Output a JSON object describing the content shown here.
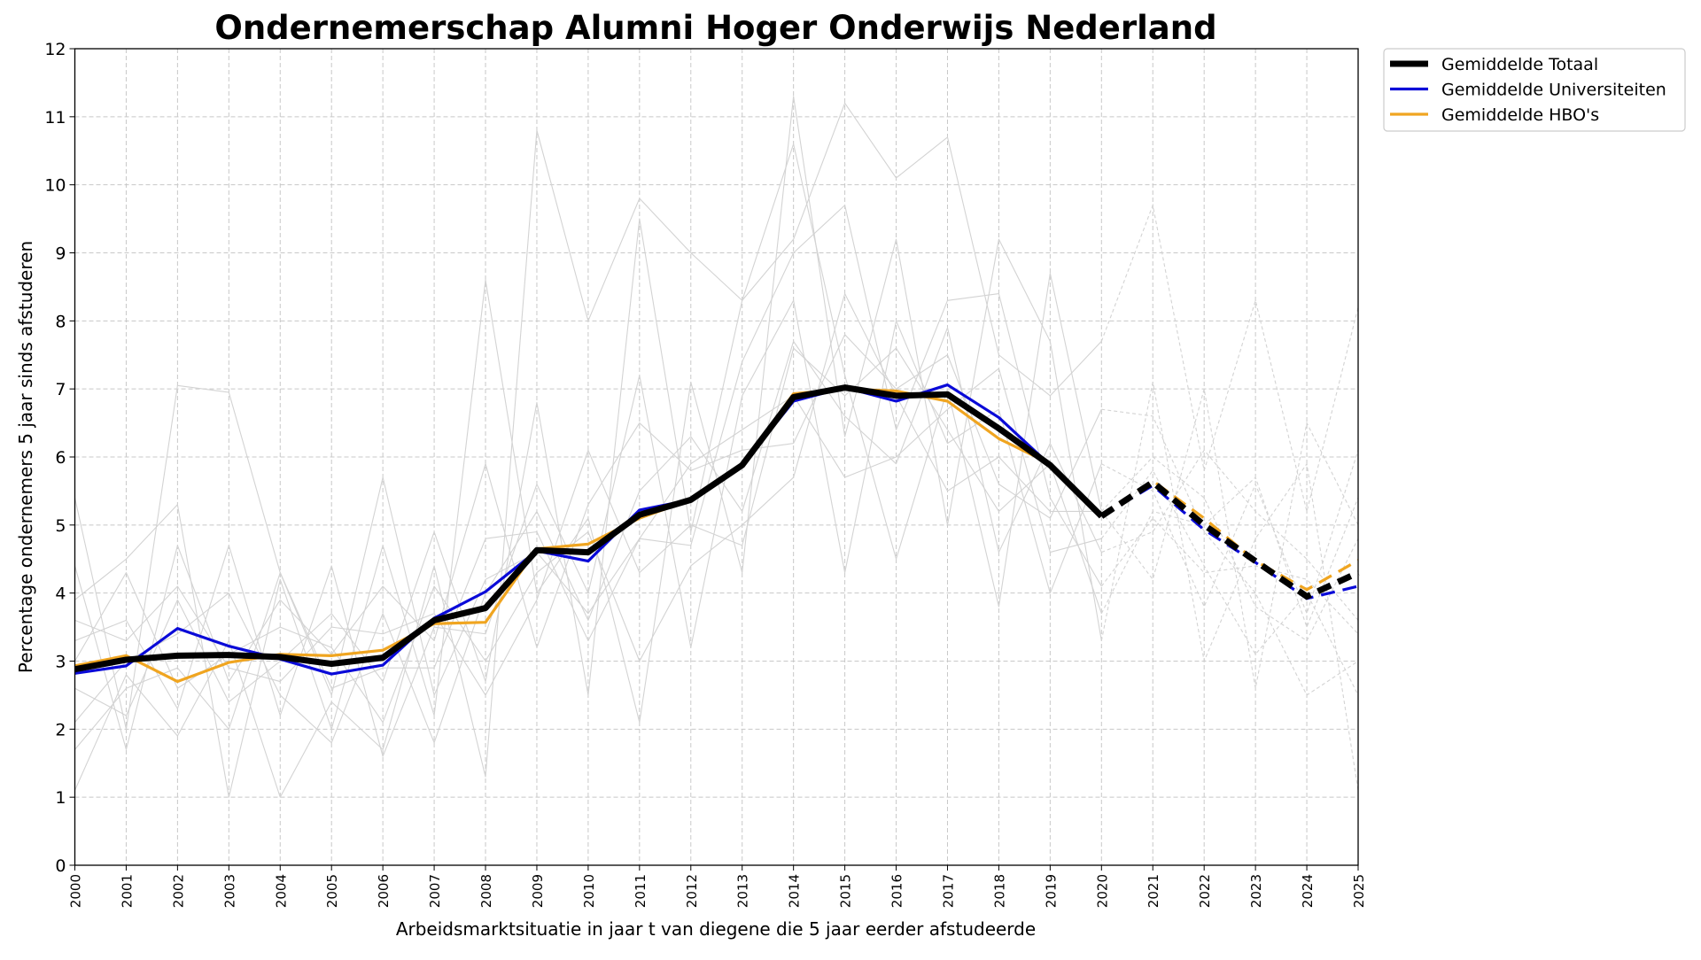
{
  "chart_data": {
    "type": "line",
    "title": "Ondernemerschap Alumni Hoger Onderwijs Nederland",
    "xlabel": "Arbeidsmarktsituatie in jaar t van diegene die 5 jaar eerder afstudeerde",
    "ylabel": "Percentage ondernemers 5 jaar sinds afstuderen",
    "x": [
      2000,
      2001,
      2002,
      2003,
      2004,
      2005,
      2006,
      2007,
      2008,
      2009,
      2010,
      2011,
      2012,
      2013,
      2014,
      2015,
      2016,
      2017,
      2018,
      2019,
      2020,
      2021,
      2022,
      2023,
      2024,
      2025
    ],
    "xlim": [
      2000,
      2025
    ],
    "ylim": [
      0,
      12
    ],
    "yticks": [
      0,
      1,
      2,
      3,
      4,
      5,
      6,
      7,
      8,
      9,
      10,
      11,
      12
    ],
    "grid": true,
    "dashed_from_x": 2020,
    "legend_position": "outside-top-right",
    "series": [
      {
        "name": "Gemiddelde Totaal",
        "color": "#000000",
        "values": [
          2.88,
          3.02,
          3.08,
          3.09,
          3.06,
          2.96,
          3.05,
          3.6,
          3.78,
          4.63,
          4.6,
          5.15,
          5.37,
          5.88,
          6.88,
          7.02,
          6.9,
          6.92,
          6.42,
          5.88,
          5.13,
          5.63,
          5.0,
          4.47,
          3.95,
          4.3
        ]
      },
      {
        "name": "Gemiddelde Universiteiten",
        "color": "#0a0ad8",
        "values": [
          2.82,
          2.93,
          3.48,
          3.22,
          3.03,
          2.81,
          2.94,
          3.63,
          4.02,
          4.62,
          4.47,
          5.22,
          5.37,
          5.88,
          6.82,
          7.02,
          6.82,
          7.06,
          6.58,
          5.88,
          5.13,
          5.58,
          4.93,
          4.45,
          3.92,
          4.1
        ]
      },
      {
        "name": "Gemiddelde HBO's",
        "color": "#f0a520",
        "values": [
          2.93,
          3.08,
          2.7,
          2.98,
          3.1,
          3.08,
          3.16,
          3.55,
          3.57,
          4.65,
          4.72,
          5.1,
          5.37,
          5.88,
          6.93,
          7.0,
          6.97,
          6.82,
          6.27,
          5.9,
          5.13,
          5.65,
          5.1,
          4.47,
          4.05,
          4.48
        ]
      }
    ],
    "background_series_color": "#d3d3d3",
    "background_series": [
      [
        5.4,
        2.0,
        7.05,
        6.95,
        4.3,
        2.5,
        5.7,
        2.5,
        4.2,
        4.6,
        3.7,
        4.8,
        4.7,
        7.4,
        9.0,
        9.7,
        6.4,
        8.3,
        8.4,
        5.4,
        4.1,
        5.1,
        4.3,
        4.4,
        4.2,
        3.4
      ],
      [
        1.1,
        2.8,
        1.9,
        3.3,
        1.0,
        2.4,
        1.7,
        4.4,
        1.3,
        10.8,
        8.0,
        9.8,
        9.0,
        8.3,
        9.2,
        11.2,
        10.1,
        10.7,
        7.5,
        6.9,
        7.7,
        9.7,
        5.8,
        8.3,
        5.2,
        8.2
      ],
      [
        3.9,
        4.5,
        5.3,
        1.0,
        4.2,
        2.0,
        4.7,
        2.2,
        8.6,
        4.0,
        5.1,
        2.1,
        7.1,
        4.3,
        11.3,
        6.3,
        9.2,
        5.0,
        9.2,
        7.7,
        3.3,
        7.1,
        3.0,
        4.8,
        5.9,
        1.1
      ],
      [
        2.6,
        2.2,
        3.9,
        2.4,
        3.0,
        3.7,
        2.7,
        4.9,
        2.7,
        6.8,
        2.5,
        9.5,
        4.9,
        8.3,
        10.6,
        7.2,
        4.5,
        7.0,
        3.8,
        8.7,
        5.2,
        4.2,
        7.0,
        2.6,
        6.5,
        5.0
      ],
      [
        3.3,
        3.6,
        2.3,
        4.7,
        2.2,
        4.4,
        1.6,
        3.5,
        3.4,
        5.6,
        4.0,
        7.2,
        3.2,
        6.9,
        8.3,
        4.3,
        8.0,
        6.2,
        6.7,
        4.0,
        5.9,
        5.5,
        3.8,
        5.6,
        3.7,
        6.1
      ],
      [
        4.4,
        1.7,
        4.7,
        2.7,
        3.9,
        3.1,
        4.1,
        3.3,
        5.9,
        3.2,
        5.3,
        6.5,
        5.8,
        6.1,
        6.2,
        7.8,
        7.0,
        7.5,
        5.6,
        5.1,
        6.7,
        6.6,
        4.9,
        4.0,
        2.5,
        3.0
      ],
      [
        2.1,
        3.0,
        3.4,
        4.0,
        2.5,
        1.8,
        3.7,
        1.8,
        4.0,
        5.2,
        3.6,
        5.5,
        6.3,
        5.2,
        7.7,
        6.6,
        5.9,
        7.9,
        4.6,
        6.2,
        4.6,
        4.9,
        6.1,
        5.2,
        4.5,
        3.6
      ],
      [
        3.0,
        4.3,
        2.6,
        3.1,
        3.5,
        3.2,
        2.1,
        4.1,
        3.0,
        4.3,
        4.9,
        3.0,
        4.4,
        5.0,
        5.7,
        8.4,
        6.9,
        5.5,
        6.0,
        5.2,
        5.2,
        6.0,
        5.4,
        3.8,
        3.3,
        4.8
      ],
      [
        1.7,
        2.6,
        2.9,
        2.0,
        4.3,
        2.6,
        2.9,
        2.9,
        4.8,
        4.9,
        3.3,
        4.8,
        5.9,
        6.4,
        6.9,
        5.7,
        6.0,
        6.7,
        7.3,
        4.6,
        4.8,
        5.8,
        4.4,
        3.1,
        4.0,
        2.5
      ],
      [
        3.6,
        3.3,
        4.1,
        2.9,
        2.7,
        3.5,
        3.4,
        3.7,
        2.5,
        3.9,
        6.1,
        4.3,
        5.0,
        4.7,
        7.6,
        6.9,
        7.6,
        6.4,
        5.2,
        5.9,
        3.7,
        5.2,
        5.0,
        5.7,
        3.5,
        5.4
      ]
    ]
  }
}
